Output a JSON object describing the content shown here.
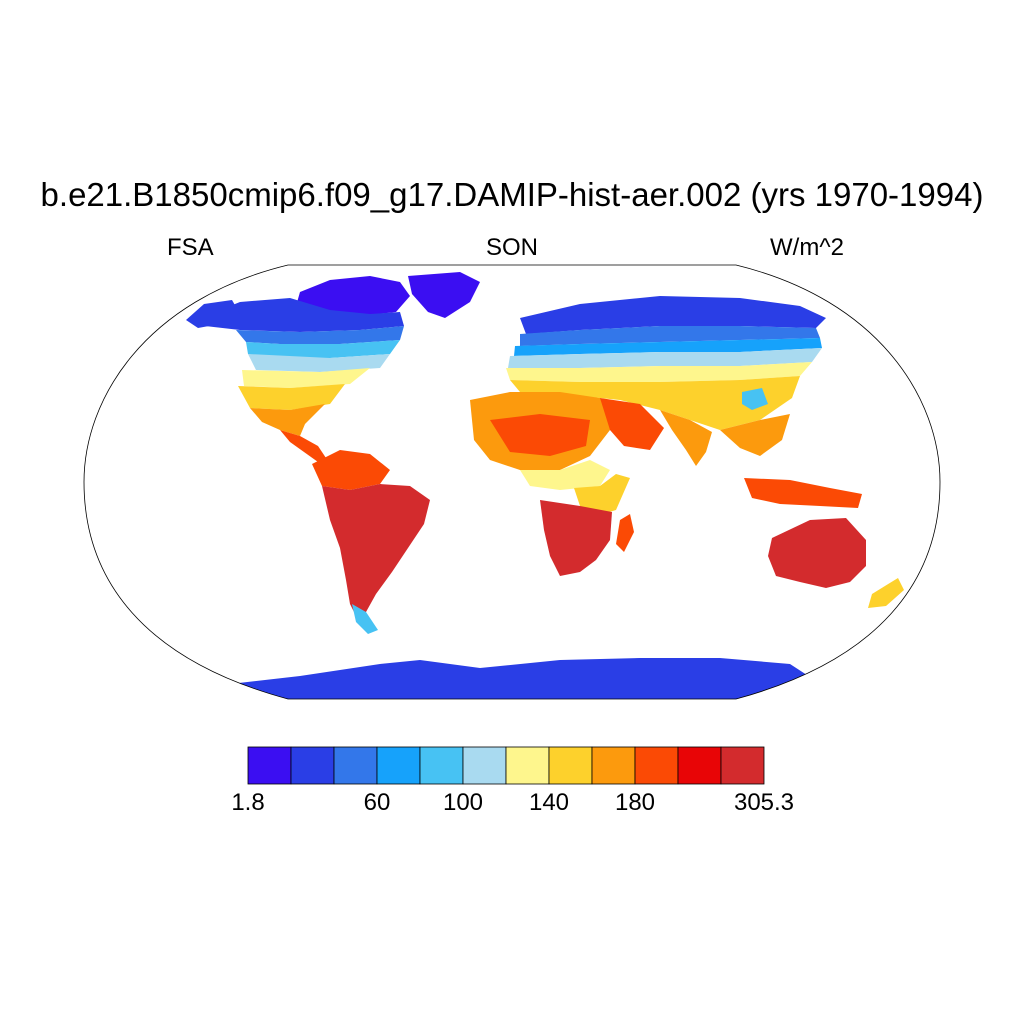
{
  "title": "b.e21.B1850cmip6.f09_g17.DAMIP-hist-aer.002 (yrs 1970-1994)",
  "left_label": "FSA",
  "center_label": "SON",
  "right_label": "W/m^2",
  "colorbar": {
    "colors": [
      "#3b0ef2",
      "#2a3ee6",
      "#3377ea",
      "#16a2fb",
      "#47c2f3",
      "#a9daf0",
      "#fef68d",
      "#fdd12c",
      "#fc9a0d",
      "#fb4a05",
      "#e80506",
      "#d32b2d"
    ],
    "tick_labels": [
      "1.8",
      "60",
      "100",
      "140",
      "180",
      "305.3"
    ]
  }
}
